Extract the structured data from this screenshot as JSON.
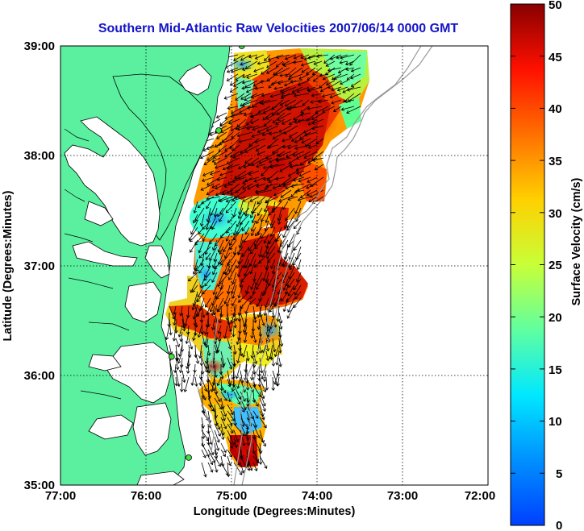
{
  "title": "Southern Mid-Atlantic Raw Velocities 2007/06/14 0000 GMT",
  "x_axis": {
    "label": "Longitude (Degrees:Minutes)",
    "ticks": [
      "77:00",
      "76:00",
      "75:00",
      "74:00",
      "73:00",
      "72:00"
    ]
  },
  "y_axis": {
    "label": "Latitude (Degrees:Minutes)",
    "ticks": [
      "39:00",
      "38:00",
      "37:00",
      "36:00",
      "35:00"
    ]
  },
  "colorbar": {
    "label": "Surface Velocity (cm/s)",
    "ticks": [
      "50",
      "45",
      "40",
      "35",
      "30",
      "25",
      "20",
      "15",
      "10",
      "5",
      "0"
    ],
    "range": [
      0,
      50
    ],
    "colormap": "jet"
  },
  "map": {
    "lon_range": [
      -77,
      -72
    ],
    "lat_range": [
      35,
      39
    ],
    "land_color": "#5af0a0",
    "grid": "dotted",
    "stations": [
      {
        "lon": -74.88,
        "lat": 39.0
      },
      {
        "lon": -75.15,
        "lat": 38.23
      },
      {
        "lon": -75.7,
        "lat": 36.17
      },
      {
        "lon": -75.5,
        "lat": 35.25
      }
    ]
  }
}
